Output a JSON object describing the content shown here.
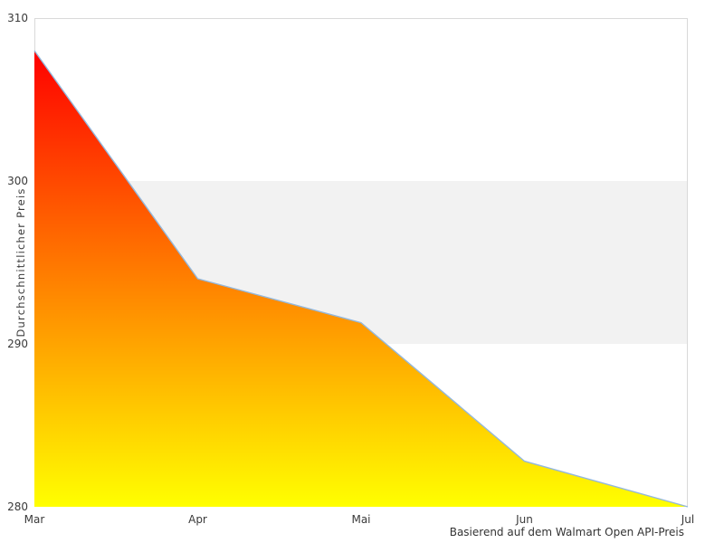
{
  "chart_data": {
    "type": "area",
    "title": "",
    "categories": [
      "Mar",
      "Apr",
      "Mai",
      "Jun",
      "Jul"
    ],
    "values": [
      308,
      294,
      291.3,
      282.8,
      280
    ],
    "series": [
      {
        "name": "Durchschnittlicher Preis",
        "values": [
          308,
          294,
          291.3,
          282.8,
          280
        ]
      }
    ],
    "xlabel": "Basierend auf dem Walmart Open API-Preis",
    "ylabel": "Durchschnittlicher Preis",
    "ylim": [
      280,
      310
    ],
    "y_ticks": [
      310,
      300,
      290,
      280
    ],
    "x_ticks": [
      "Mar",
      "Apr",
      "Mai",
      "Jun",
      "Jul"
    ],
    "grid": "off",
    "legend": "none",
    "band": {
      "from": 290,
      "to": 300,
      "color": "#f2f2f2"
    },
    "colors": {
      "gradient_top": "#ff0000",
      "gradient_bottom": "#ffff00",
      "line": "#94b8dc",
      "plot_border": "#d9d9d9",
      "tick_text": "#3a3a3a"
    }
  }
}
